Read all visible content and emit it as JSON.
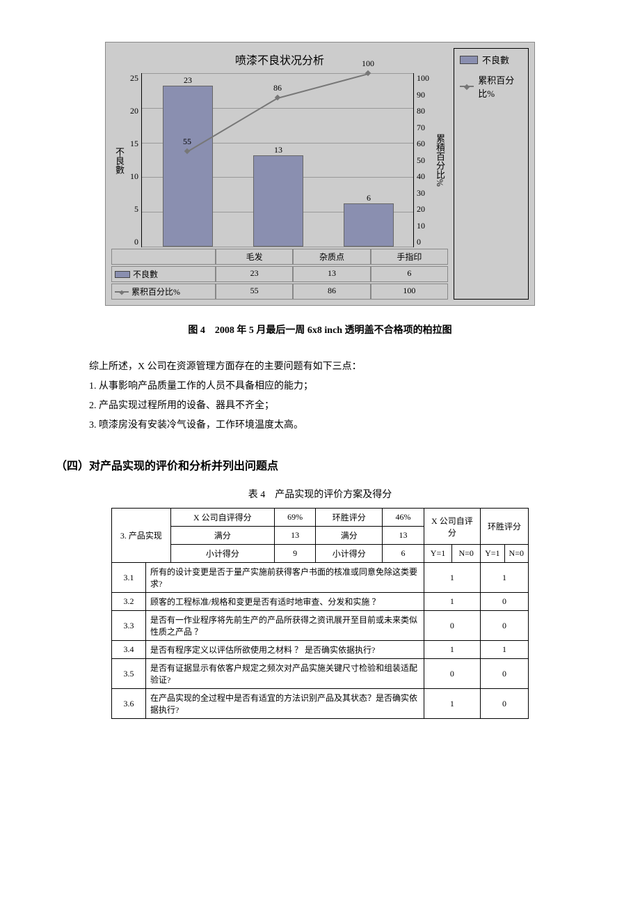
{
  "chart": {
    "title": "喷漆不良状况分析",
    "left_axis_label": "不良數",
    "right_axis_label": "累積百分比%",
    "background": "#cccccc",
    "bar_color": "#8a8fb0",
    "bar_border": "#666666",
    "line_color": "#777777",
    "grid_color": "#999999",
    "categories": [
      "毛发",
      "杂质点",
      "手指印"
    ],
    "bars": [
      23,
      13,
      6
    ],
    "bar_max": 25,
    "line_pct": [
      55,
      86,
      100
    ],
    "line_max": 100,
    "left_ticks": [
      "25",
      "20",
      "15",
      "10",
      "5",
      "0"
    ],
    "right_ticks": [
      "100",
      "90",
      "80",
      "70",
      "60",
      "50",
      "40",
      "30",
      "20",
      "10",
      "0"
    ],
    "legend": {
      "series1": "不良數",
      "series2": "累积百分比%"
    },
    "data_table": {
      "row1_label": "不良數",
      "row2_label": "累积百分比%",
      "row1": [
        "23",
        "13",
        "6"
      ],
      "row2": [
        "55",
        "86",
        "100"
      ]
    }
  },
  "fig_caption": "图 4　2008 年 5 月最后一周 6x8 inch 透明盖不合格项的柏拉图",
  "para_lead": "综上所述，X 公司在资源管理方面存在的主要问题有如下三点：",
  "bullets": [
    "1. 从事影响产品质量工作的人员不具备相应的能力；",
    "2. 产品实现过程所用的设备、器具不齐全；",
    "3. 喷漆房没有安装冷气设备，工作环境温度太高。"
  ],
  "section_head": "（四）对产品实现的评价和分析并列出问题点",
  "table_caption": "表 4　产品实现的评价方案及得分",
  "eval": {
    "group_label": "3. 产品实现",
    "head": {
      "self_label": "X 公司自评得分",
      "self_pct": "69%",
      "hs_label": "环胜评分",
      "hs_pct": "46%",
      "self_label2": "X 公司自评分",
      "hs_label2": "环胜评分",
      "full_label": "满分",
      "full_self": "13",
      "full_hs": "13",
      "sub_label": "小计得分",
      "sub_self": "9",
      "sub_hs": "6",
      "y1": "Y=1",
      "n0": "N=0"
    },
    "rows": [
      {
        "idx": "3.1",
        "q": "所有的设计变更是否于量产实施前获得客户书面的核准或同意免除这类要求?",
        "a": "1",
        "b": "1"
      },
      {
        "idx": "3.2",
        "q": "顾客的工程标准/规格和变更是否有适时地审查、分发和实施 ？",
        "a": "1",
        "b": "0"
      },
      {
        "idx": "3.3",
        "q": "是否有一作业程序将先前生产的产品所获得之资讯展开至目前或未来类似性质之产品 ？",
        "a": "0",
        "b": "0"
      },
      {
        "idx": "3.4",
        "q": "是否有程序定义以评估所欲使用之材料 ？ 是否确实依据执行?",
        "a": "1",
        "b": "1"
      },
      {
        "idx": "3.5",
        "q": "是否有证据显示有依客户规定之频次对产品实施关键尺寸检验和组装适配验证?",
        "a": "0",
        "b": "0"
      },
      {
        "idx": "3.6",
        "q": "在产品实现的全过程中是否有适宜的方法识别产品及其状态？是否确实依据执行?",
        "a": "1",
        "b": "0"
      }
    ]
  }
}
